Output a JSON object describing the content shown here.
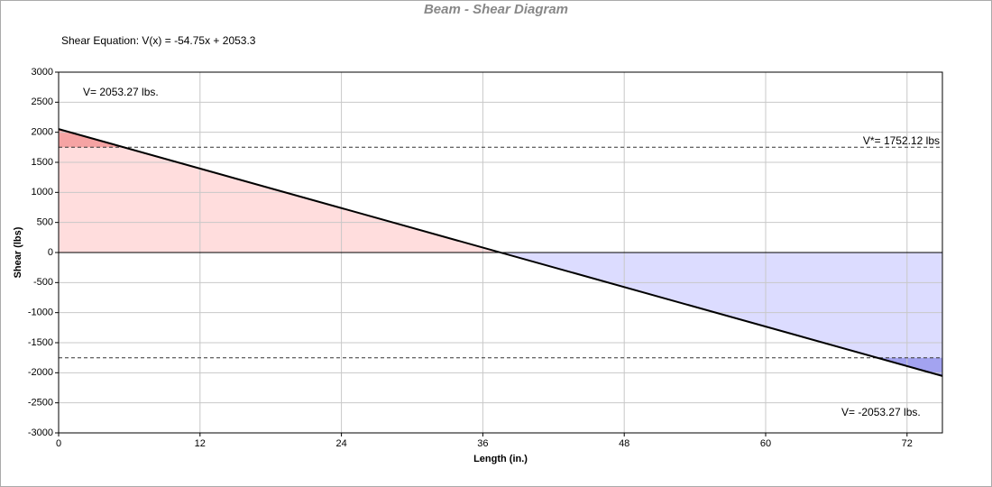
{
  "chart_data": {
    "type": "line",
    "title": "Beam - Shear Diagram",
    "equation": "Shear Equation:  V(x) = -54.75x + 2053.3",
    "x_label": "Length (in.)",
    "y_label": "Shear (lbs)",
    "x": [
      0,
      75
    ],
    "series": [
      {
        "color": "#000000",
        "values": [
          2053.27,
          -2053.27
        ]
      }
    ],
    "thresholds": [
      1752.12,
      -1752.12
    ],
    "annotations": [
      "V= 2053.27 lbs.",
      "V*= 1752.12 lbs",
      "V= -2053.27 lbs."
    ],
    "positive_fill": "#ffdddd",
    "positive_excess_fill": "#f5a3a3",
    "negative_fill": "#dcdcff",
    "negative_excess_fill": "#a3a3f0",
    "xlim": [
      0,
      75
    ],
    "xticks": [
      0,
      12,
      24,
      36,
      48,
      60,
      72
    ],
    "ylim": [
      -3000,
      3000
    ],
    "yticks": [
      -3000,
      -2500,
      -2000,
      -1500,
      -1000,
      -500,
      0,
      500,
      1000,
      1500,
      2000,
      2500,
      3000
    ],
    "grid": true
  }
}
